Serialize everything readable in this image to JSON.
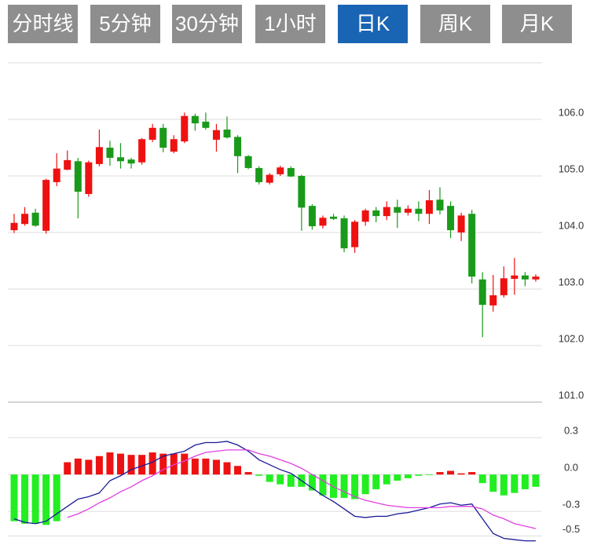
{
  "tabs": [
    "分时线",
    "5分钟",
    "30分钟",
    "1小时",
    "日K",
    "周K",
    "月K"
  ],
  "active_tab": 4,
  "chart_data": [
    {
      "type": "candlestick",
      "up_color": "#ee1111",
      "down_color": "#1a9a1a",
      "ylim": [
        101,
        107
      ],
      "yticks": [
        {
          "value": 101,
          "label": "101.0"
        },
        {
          "value": 102,
          "label": "102.0"
        },
        {
          "value": 103,
          "label": "103.0"
        },
        {
          "value": 104,
          "label": "104.0"
        },
        {
          "value": 105,
          "label": "105.0"
        },
        {
          "value": 106,
          "label": "106.0"
        }
      ],
      "grid": true,
      "open": [
        104.04,
        104.15,
        104.35,
        104.03,
        104.89,
        105.11,
        105.26,
        104.68,
        105.21,
        105.5,
        105.33,
        105.29,
        105.24,
        105.64,
        105.85,
        105.43,
        105.61,
        106.06,
        105.96,
        105.64,
        105.82,
        105.69,
        105.35,
        105.14,
        104.88,
        105.03,
        105.14,
        105.0,
        104.47,
        104.12,
        104.28,
        104.25,
        103.74,
        104.19,
        104.39,
        104.29,
        104.45,
        104.35,
        104.42,
        104.33,
        104.58,
        104.47,
        104.0,
        104.33,
        103.17,
        102.71,
        102.89,
        103.18,
        103.24,
        103.17
      ],
      "high": [
        104.33,
        104.45,
        104.42,
        104.95,
        105.4,
        105.45,
        105.32,
        105.27,
        105.82,
        105.62,
        105.58,
        105.32,
        105.67,
        105.92,
        105.92,
        105.72,
        106.12,
        106.1,
        106.12,
        105.92,
        106.05,
        105.72,
        105.37,
        105.17,
        105.05,
        105.18,
        105.17,
        105.02,
        104.5,
        104.3,
        104.33,
        104.3,
        104.22,
        104.42,
        104.45,
        104.55,
        104.58,
        104.48,
        104.55,
        104.75,
        104.8,
        104.55,
        104.35,
        104.4,
        103.3,
        103.25,
        103.4,
        103.55,
        103.3,
        103.26
      ],
      "low": [
        103.99,
        104.12,
        104.1,
        103.98,
        104.82,
        105.1,
        104.25,
        104.63,
        105.17,
        105.18,
        105.13,
        105.13,
        105.2,
        105.6,
        105.42,
        105.4,
        105.58,
        105.8,
        105.82,
        105.43,
        105.66,
        105.05,
        105.12,
        104.85,
        104.85,
        105.0,
        104.98,
        104.03,
        104.05,
        104.07,
        104.22,
        103.65,
        103.64,
        104.12,
        104.18,
        104.22,
        104.08,
        104.3,
        104.2,
        104.15,
        104.32,
        103.9,
        103.85,
        103.1,
        102.15,
        102.6,
        102.85,
        102.9,
        103.05,
        103.13
      ],
      "close": [
        104.17,
        104.33,
        104.12,
        104.93,
        105.13,
        105.28,
        104.72,
        105.24,
        105.51,
        105.32,
        105.26,
        105.22,
        105.65,
        105.85,
        105.5,
        105.65,
        106.06,
        105.93,
        105.85,
        105.81,
        105.68,
        105.35,
        105.14,
        104.89,
        105.02,
        105.15,
        104.99,
        104.44,
        104.11,
        104.26,
        104.24,
        103.72,
        104.19,
        104.39,
        104.29,
        104.45,
        104.35,
        104.42,
        104.33,
        104.57,
        104.39,
        104.04,
        104.3,
        103.22,
        102.72,
        102.89,
        103.19,
        103.24,
        103.17,
        103.22
      ]
    },
    {
      "type": "macd",
      "ylim": [
        -0.6,
        0.5
      ],
      "yticks": [
        -0.5,
        -0.3,
        {
          "value": 0,
          "label": "0.0"
        },
        0.3
      ],
      "grid": true,
      "histogram": {
        "up_color": "#ee1111",
        "down_color": "#22ee22",
        "values": [
          -0.38,
          -0.4,
          -0.4,
          -0.41,
          -0.38,
          0.1,
          0.13,
          0.12,
          0.15,
          0.18,
          0.17,
          0.16,
          0.16,
          0.18,
          0.17,
          0.17,
          0.17,
          0.13,
          0.13,
          0.12,
          0.1,
          0.07,
          0.02,
          -0.01,
          -0.06,
          -0.08,
          -0.1,
          -0.1,
          -0.13,
          -0.17,
          -0.19,
          -0.19,
          -0.2,
          -0.16,
          -0.12,
          -0.08,
          -0.05,
          -0.03,
          -0.01,
          -0.005,
          0.02,
          0.03,
          0.01,
          0.02,
          -0.07,
          -0.14,
          -0.17,
          -0.15,
          -0.12,
          -0.1
        ]
      },
      "lines": [
        {
          "color": "#1a1a99",
          "values": [
            -0.36,
            -0.39,
            -0.4,
            -0.38,
            -0.32,
            -0.26,
            -0.2,
            -0.18,
            -0.15,
            -0.05,
            -0.01,
            0.04,
            0.07,
            0.1,
            0.15,
            0.17,
            0.19,
            0.24,
            0.26,
            0.26,
            0.27,
            0.24,
            0.19,
            0.12,
            0.08,
            0.04,
            0.01,
            -0.05,
            -0.11,
            -0.17,
            -0.22,
            -0.28,
            -0.34,
            -0.35,
            -0.34,
            -0.34,
            -0.32,
            -0.31,
            -0.29,
            -0.27,
            -0.24,
            -0.23,
            -0.25,
            -0.24,
            -0.36,
            -0.48,
            -0.52,
            -0.53,
            -0.54,
            -0.54
          ]
        },
        {
          "color": "#e040e0",
          "values": [
            null,
            null,
            null,
            null,
            null,
            -0.35,
            -0.32,
            -0.28,
            -0.23,
            -0.19,
            -0.14,
            -0.1,
            -0.05,
            -0.01,
            0.04,
            0.08,
            0.11,
            0.15,
            0.18,
            0.19,
            0.2,
            0.2,
            0.2,
            0.17,
            0.15,
            0.12,
            0.09,
            0.05,
            0.0,
            -0.05,
            -0.1,
            -0.14,
            -0.18,
            -0.21,
            -0.23,
            -0.25,
            -0.26,
            -0.27,
            -0.27,
            -0.27,
            -0.27,
            -0.26,
            -0.26,
            -0.26,
            -0.28,
            -0.33,
            -0.36,
            -0.4,
            -0.42,
            -0.44
          ]
        }
      ]
    }
  ]
}
